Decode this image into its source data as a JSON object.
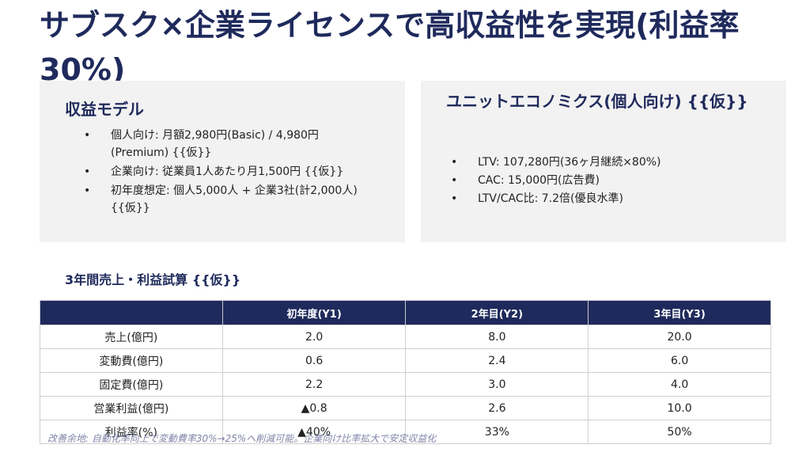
{
  "slide": {
    "title": "サブスク×企業ライセンスで高収益性を実現(利益率30%)"
  },
  "revenue_model": {
    "heading": "収益モデル",
    "items": [
      "個人向け: 月額2,980円(Basic) / 4,980円(Premium) {{仮}}",
      "企業向け: 従業員1人あたり月1,500円 {{仮}}",
      "初年度想定: 個人5,000人 + 企業3社(計2,000人) {{仮}}"
    ]
  },
  "unit_economics": {
    "heading": "ユニットエコノミクス(個人向け) {{仮}}",
    "items": [
      "LTV: 107,280円(36ヶ月継続×80%)",
      "CAC: 15,000円(広告費)",
      "LTV/CAC比: 7.2倍(優良水準)"
    ]
  },
  "forecast": {
    "title": "3年間売上・利益試算 {{仮}}",
    "headers": [
      "",
      "初年度(Y1)",
      "2年目(Y2)",
      "3年目(Y3)"
    ],
    "rows": [
      [
        "売上(億円)",
        "2.0",
        "8.0",
        "20.0"
      ],
      [
        "変動費(億円)",
        "0.6",
        "2.4",
        "6.0"
      ],
      [
        "固定費(億円)",
        "2.2",
        "3.0",
        "4.0"
      ],
      [
        "営業利益(億円)",
        "▲0.8",
        "2.6",
        "10.0"
      ],
      [
        "利益率(%)",
        "▲40%",
        "33%",
        "50%"
      ]
    ]
  },
  "note": "改善余地: 自動化率向上で変動費率30%→25%へ削減可能。企業向け比率拡大で安定収益化"
}
